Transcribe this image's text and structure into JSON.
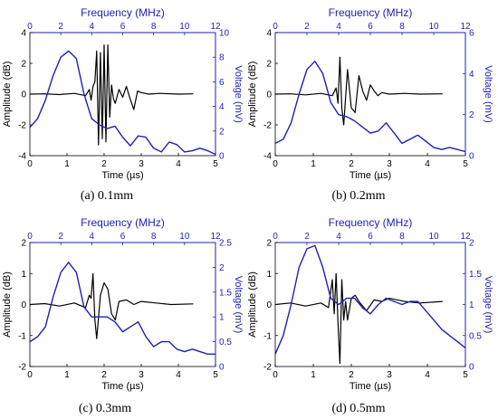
{
  "chart_data": [
    {
      "type": "line",
      "caption": "(a) 0.1mm",
      "xlabel": "Time (µs)",
      "xlim": [
        0,
        5
      ],
      "xticks": [
        0,
        1,
        2,
        3,
        4,
        5
      ],
      "ylabel": "Amplitude (dB)",
      "ylim": [
        -4,
        4
      ],
      "yticks": [
        -4,
        -2,
        0,
        2,
        4
      ],
      "x2label": "Frequency (MHz)",
      "x2lim": [
        0,
        12
      ],
      "x2ticks": [
        0,
        2,
        4,
        6,
        8,
        10,
        12
      ],
      "y2label": "Voltage (mV)",
      "y2lim": [
        0,
        10
      ],
      "y2ticks": [
        0,
        2,
        4,
        6,
        8,
        10
      ],
      "series": [
        {
          "color": "#000000",
          "axes": "time-amplitude",
          "x": [
            0.0,
            0.4,
            0.8,
            1.2,
            1.5,
            1.6,
            1.65,
            1.7,
            1.75,
            1.8,
            1.85,
            1.9,
            1.95,
            2.0,
            2.05,
            2.1,
            2.15,
            2.2,
            2.25,
            2.3,
            2.4,
            2.5,
            2.6,
            2.7,
            2.8,
            2.9,
            3.0,
            3.2,
            3.5,
            4.0,
            4.4
          ],
          "y": [
            0.0,
            0.02,
            -0.03,
            0.05,
            -0.1,
            0.3,
            -0.4,
            0.5,
            0.8,
            2.8,
            -3.3,
            2.7,
            -2.9,
            3.2,
            -3.1,
            3.2,
            -1.5,
            0.6,
            -0.3,
            -0.6,
            0.3,
            -0.2,
            0.5,
            -0.3,
            -1.0,
            0.2,
            0.1,
            0.0,
            0.05,
            0.0,
            0.02
          ]
        },
        {
          "color": "#1f1fb4",
          "axes": "frequency-voltage",
          "x": [
            0,
            0.5,
            1,
            1.5,
            2,
            2.5,
            3,
            3.5,
            4,
            4.5,
            5,
            5.5,
            6,
            6.5,
            7,
            7.5,
            8,
            8.5,
            9,
            9.5,
            10,
            10.5,
            11,
            11.5,
            12
          ],
          "y": [
            2.3,
            3.0,
            4.5,
            6.5,
            8.0,
            8.5,
            7.9,
            5.0,
            3.0,
            2.5,
            2.2,
            2.4,
            1.5,
            0.8,
            1.6,
            1.5,
            0.6,
            0.3,
            1.1,
            0.9,
            0.3,
            0.4,
            0.6,
            0.4,
            0.1
          ]
        }
      ]
    },
    {
      "type": "line",
      "caption": "(b) 0.2mm",
      "xlabel": "Time (µs)",
      "xlim": [
        0,
        5
      ],
      "xticks": [
        0,
        1,
        2,
        3,
        4,
        5
      ],
      "ylabel": "Amplitude (dB)",
      "ylim": [
        -4,
        4
      ],
      "yticks": [
        -4,
        -2,
        0,
        2,
        4
      ],
      "x2label": "Frequency (MHz)",
      "x2lim": [
        0,
        12
      ],
      "x2ticks": [
        0,
        2,
        4,
        6,
        8,
        10,
        12
      ],
      "y2label": "Voltage (mV)",
      "y2lim": [
        0,
        6
      ],
      "y2ticks": [
        0,
        2,
        4,
        6
      ],
      "series": [
        {
          "color": "#000000",
          "axes": "time-amplitude",
          "x": [
            0.0,
            0.4,
            0.8,
            1.2,
            1.5,
            1.6,
            1.65,
            1.7,
            1.75,
            1.8,
            1.9,
            2.0,
            2.1,
            2.2,
            2.3,
            2.4,
            2.5,
            2.6,
            2.7,
            2.8,
            3.0,
            3.4,
            3.8,
            4.4
          ],
          "y": [
            0.0,
            0.02,
            -0.05,
            0.05,
            -0.1,
            0.4,
            -0.6,
            2.4,
            -0.9,
            -2.0,
            1.6,
            -0.9,
            -1.2,
            1.2,
            0.2,
            -0.4,
            0.6,
            0.2,
            -0.1,
            0.1,
            0.0,
            0.05,
            0.0,
            0.02
          ]
        },
        {
          "color": "#1f1fb4",
          "axes": "frequency-voltage",
          "x": [
            0,
            0.5,
            1,
            1.5,
            2,
            2.5,
            3,
            3.5,
            4,
            4.5,
            5,
            5.5,
            6,
            6.5,
            7,
            7.5,
            8,
            8.5,
            9,
            9.5,
            10,
            10.5,
            11,
            11.5,
            12
          ],
          "y": [
            0.6,
            0.8,
            1.6,
            3.0,
            4.2,
            4.6,
            4.0,
            2.6,
            2.0,
            1.9,
            1.7,
            1.4,
            1.1,
            1.2,
            1.6,
            1.1,
            0.6,
            0.8,
            1.0,
            0.7,
            0.4,
            0.3,
            0.4,
            0.3,
            0.2
          ]
        }
      ]
    },
    {
      "type": "line",
      "caption": "(c) 0.3mm",
      "xlabel": "Time (µs)",
      "xlim": [
        0,
        5
      ],
      "xticks": [
        0,
        1,
        2,
        3,
        4,
        5
      ],
      "ylabel": "Amplitude (dB)",
      "ylim": [
        -2,
        2
      ],
      "yticks": [
        -2,
        -1,
        0,
        1,
        2
      ],
      "x2label": "Frequency (MHz)",
      "x2lim": [
        0,
        12
      ],
      "x2ticks": [
        0,
        2,
        4,
        6,
        8,
        10,
        12
      ],
      "y2label": "Voltage (mV)",
      "y2lim": [
        0,
        2.5
      ],
      "y2ticks": [
        0,
        0.5,
        1,
        1.5,
        2,
        2.5
      ],
      "series": [
        {
          "color": "#000000",
          "axes": "time-amplitude",
          "x": [
            0.0,
            0.4,
            0.8,
            1.2,
            1.5,
            1.6,
            1.65,
            1.7,
            1.75,
            1.8,
            1.9,
            2.0,
            2.1,
            2.2,
            2.3,
            2.4,
            2.6,
            2.8,
            3.0,
            3.4,
            3.8,
            4.4
          ],
          "y": [
            0.0,
            0.03,
            -0.05,
            0.05,
            -0.1,
            0.3,
            0.2,
            1.0,
            -0.5,
            -1.1,
            0.3,
            0.7,
            0.5,
            -0.3,
            -0.5,
            0.1,
            0.15,
            0.0,
            0.1,
            0.05,
            0.0,
            0.02
          ]
        },
        {
          "color": "#1f1fb4",
          "axes": "frequency-voltage",
          "x": [
            0,
            0.5,
            1,
            1.5,
            2,
            2.5,
            3,
            3.5,
            4,
            4.5,
            5,
            5.5,
            6,
            6.5,
            7,
            7.5,
            8,
            8.5,
            9,
            9.5,
            10,
            10.5,
            11,
            11.5,
            12
          ],
          "y": [
            0.5,
            0.6,
            0.8,
            1.4,
            1.9,
            2.1,
            1.9,
            1.2,
            1.0,
            1.0,
            1.0,
            0.9,
            0.7,
            0.8,
            0.9,
            0.6,
            0.4,
            0.5,
            0.5,
            0.35,
            0.3,
            0.35,
            0.3,
            0.25,
            0.25
          ]
        }
      ]
    },
    {
      "type": "line",
      "caption": "(d) 0.5mm",
      "xlabel": "Time (µs)",
      "xlim": [
        0,
        5
      ],
      "xticks": [
        0,
        1,
        2,
        3,
        4,
        5
      ],
      "ylabel": "Amplitude (dB)",
      "ylim": [
        -2,
        2
      ],
      "yticks": [
        -2,
        -1,
        0,
        1,
        2
      ],
      "x2label": "Frequency (MHz)",
      "x2lim": [
        0,
        12
      ],
      "x2ticks": [
        0,
        2,
        4,
        6,
        8,
        10,
        12
      ],
      "y2label": "Voltage (mV)",
      "y2lim": [
        0,
        2
      ],
      "y2ticks": [
        0,
        0.5,
        1,
        1.5,
        2
      ],
      "series": [
        {
          "color": "#000000",
          "axes": "time-amplitude",
          "x": [
            0.0,
            0.4,
            0.8,
            1.2,
            1.4,
            1.5,
            1.55,
            1.6,
            1.65,
            1.7,
            1.75,
            1.8,
            1.85,
            1.9,
            2.0,
            2.1,
            2.2,
            2.4,
            2.6,
            2.8,
            3.0,
            3.4,
            3.8,
            4.4
          ],
          "y": [
            0.0,
            0.05,
            -0.05,
            0.05,
            -0.1,
            0.8,
            -0.3,
            1.0,
            -0.6,
            -1.9,
            0.8,
            -0.5,
            0.1,
            -0.5,
            0.2,
            0.3,
            0.1,
            -0.2,
            0.15,
            0.1,
            0.2,
            0.1,
            0.05,
            0.1
          ]
        },
        {
          "color": "#1f1fb4",
          "axes": "frequency-voltage",
          "x": [
            0,
            0.5,
            1,
            1.5,
            2,
            2.5,
            3,
            3.5,
            4,
            4.5,
            5,
            5.5,
            6,
            6.5,
            7,
            7.5,
            8,
            8.5,
            9,
            9.5,
            10,
            10.5,
            11,
            11.5,
            12
          ],
          "y": [
            0.2,
            0.5,
            1.0,
            1.6,
            1.9,
            1.95,
            1.6,
            1.1,
            1.0,
            1.1,
            1.1,
            0.95,
            0.85,
            1.0,
            1.1,
            1.05,
            1.0,
            1.05,
            1.05,
            0.9,
            0.75,
            0.6,
            0.5,
            0.4,
            0.3
          ]
        }
      ]
    }
  ]
}
